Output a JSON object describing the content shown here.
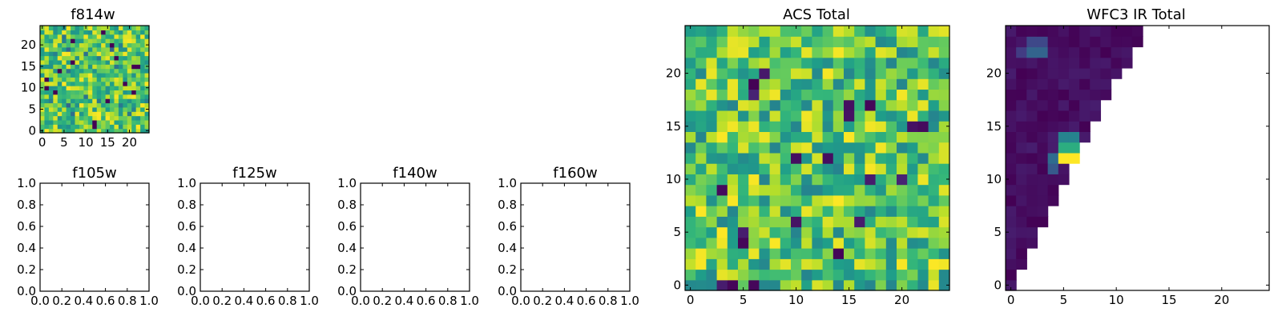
{
  "chart_data": [
    {
      "id": "f814w",
      "type": "heatmap",
      "title": "f814w",
      "xticks": [
        "0",
        "5",
        "10",
        "15",
        "20"
      ],
      "yticks": [
        "0",
        "5",
        "10",
        "15",
        "20"
      ],
      "xlim": [
        -0.5,
        24.5
      ],
      "ylim": [
        -0.5,
        24.5
      ],
      "colormap": "viridis",
      "grid_size": 25,
      "note": "dense noisy image, mostly green-yellow values with a few dark pixels"
    },
    {
      "id": "f105w",
      "type": "empty",
      "title": "f105w",
      "xticks": [
        "0.0",
        "0.2",
        "0.4",
        "0.6",
        "0.8",
        "1.0"
      ],
      "yticks": [
        "0.0",
        "0.2",
        "0.4",
        "0.6",
        "0.8",
        "1.0"
      ],
      "xlim": [
        0,
        1
      ],
      "ylim": [
        0,
        1
      ]
    },
    {
      "id": "f125w",
      "type": "empty",
      "title": "f125w",
      "xticks": [
        "0.0",
        "0.2",
        "0.4",
        "0.6",
        "0.8",
        "1.0"
      ],
      "yticks": [
        "0.0",
        "0.2",
        "0.4",
        "0.6",
        "0.8",
        "1.0"
      ],
      "xlim": [
        0,
        1
      ],
      "ylim": [
        0,
        1
      ]
    },
    {
      "id": "f140w",
      "type": "empty",
      "title": "f140w",
      "xticks": [
        "0.0",
        "0.2",
        "0.4",
        "0.6",
        "0.8",
        "1.0"
      ],
      "yticks": [
        "0.0",
        "0.2",
        "0.4",
        "0.6",
        "0.8",
        "1.0"
      ],
      "xlim": [
        0,
        1
      ],
      "ylim": [
        0,
        1
      ]
    },
    {
      "id": "f160w",
      "type": "empty",
      "title": "f160w",
      "xticks": [
        "0.0",
        "0.2",
        "0.4",
        "0.6",
        "0.8",
        "1.0"
      ],
      "yticks": [
        "0.0",
        "0.2",
        "0.4",
        "0.6",
        "0.8",
        "1.0"
      ],
      "xlim": [
        0,
        1
      ],
      "ylim": [
        0,
        1
      ]
    },
    {
      "id": "acs-total",
      "type": "heatmap",
      "title": "ACS Total",
      "xticks": [
        "0",
        "5",
        "10",
        "15",
        "20"
      ],
      "yticks": [
        "0",
        "5",
        "10",
        "15",
        "20"
      ],
      "xlim": [
        -0.5,
        24.5
      ],
      "ylim": [
        -0.5,
        24.5
      ],
      "colormap": "viridis",
      "grid_size": 25,
      "dark_cells": [
        [
          7,
          20
        ],
        [
          6,
          19
        ],
        [
          6,
          18
        ],
        [
          15,
          17
        ],
        [
          17,
          17
        ],
        [
          15,
          16
        ],
        [
          21,
          15
        ],
        [
          22,
          15
        ],
        [
          10,
          12
        ],
        [
          13,
          12
        ],
        [
          17,
          10
        ],
        [
          3,
          9
        ],
        [
          20,
          10
        ],
        [
          10,
          6
        ],
        [
          16,
          6
        ],
        [
          5,
          5
        ],
        [
          5,
          4
        ],
        [
          3,
          0
        ],
        [
          4,
          0
        ],
        [
          6,
          0
        ],
        [
          14,
          3
        ]
      ]
    },
    {
      "id": "wfc3-ir-total",
      "type": "heatmap",
      "title": "WFC3 IR Total",
      "xticks": [
        "0",
        "5",
        "10",
        "15",
        "20"
      ],
      "yticks": [
        "0",
        "5",
        "10",
        "15",
        "20"
      ],
      "xlim": [
        -0.5,
        24.5
      ],
      "ylim": [
        -0.5,
        24.5
      ],
      "colormap": "viridis",
      "grid_size": 25,
      "note": "filled triangle of mostly dark purple values, blank (white) above the diagonal",
      "highlights": [
        {
          "x": 5,
          "y": 12,
          "level": 1.0
        },
        {
          "x": 6,
          "y": 12,
          "level": 1.0
        },
        {
          "x": 5,
          "y": 13,
          "level": 0.62
        },
        {
          "x": 6,
          "y": 13,
          "level": 0.62
        },
        {
          "x": 5,
          "y": 14,
          "level": 0.45
        },
        {
          "x": 6,
          "y": 14,
          "level": 0.45
        },
        {
          "x": 4,
          "y": 12,
          "level": 0.35
        },
        {
          "x": 4,
          "y": 11,
          "level": 0.28
        },
        {
          "x": 2,
          "y": 22,
          "level": 0.32
        },
        {
          "x": 3,
          "y": 22,
          "level": 0.32
        },
        {
          "x": 2,
          "y": 23,
          "level": 0.22
        },
        {
          "x": 3,
          "y": 23,
          "level": 0.22
        },
        {
          "x": 1,
          "y": 22,
          "level": 0.18
        }
      ]
    }
  ]
}
